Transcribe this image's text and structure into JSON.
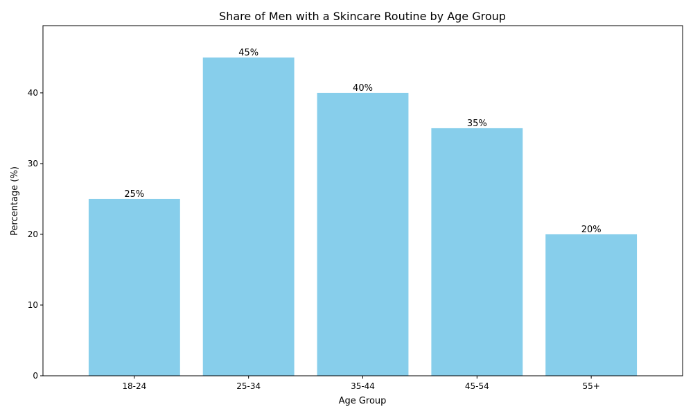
{
  "chart_data": {
    "type": "bar",
    "title": "Share of Men with a Skincare Routine by Age Group",
    "xlabel": "Age Group",
    "ylabel": "Percentage (%)",
    "categories": [
      "18-24",
      "25-34",
      "35-44",
      "45-54",
      "55+"
    ],
    "values": [
      25,
      45,
      40,
      35,
      20
    ],
    "value_labels": [
      "25%",
      "45%",
      "40%",
      "35%",
      "20%"
    ],
    "ylim": [
      0,
      49.5
    ],
    "yticks": [
      0,
      10,
      20,
      30,
      40
    ],
    "grid": false,
    "legend": "none",
    "bar_color": "#87CEEB"
  }
}
